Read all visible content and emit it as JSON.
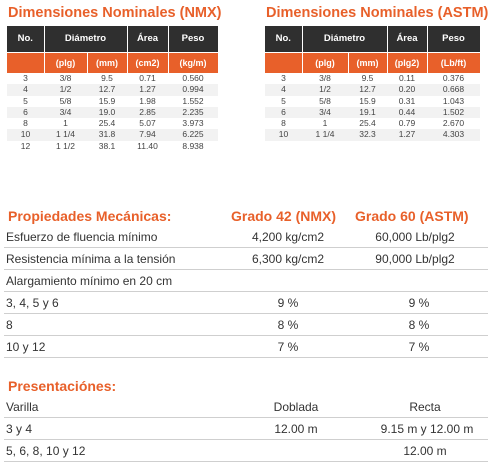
{
  "nmx": {
    "title": "Dimensiones Nominales (NMX)",
    "headers": [
      "No.",
      "Diámetro",
      "Área",
      "Peso"
    ],
    "units": [
      "(plg)",
      "(mm)",
      "(cm2)",
      "(kg/m)"
    ],
    "rows": [
      [
        "3",
        "3/8",
        "9.5",
        "0.71",
        "0.560"
      ],
      [
        "4",
        "1/2",
        "12.7",
        "1.27",
        "0.994"
      ],
      [
        "5",
        "5/8",
        "15.9",
        "1.98",
        "1.552"
      ],
      [
        "6",
        "3/4",
        "19.0",
        "2.85",
        "2.235"
      ],
      [
        "8",
        "1",
        "25.4",
        "5.07",
        "3.973"
      ],
      [
        "10",
        "1 1/4",
        "31.8",
        "7.94",
        "6.225"
      ],
      [
        "12",
        "1 1/2",
        "38.1",
        "11.40",
        "8.938"
      ]
    ]
  },
  "astm": {
    "title": "Dimensiones Nominales (ASTM)",
    "headers": [
      "No.",
      "Diámetro",
      "Área",
      "Peso"
    ],
    "units": [
      "(plg)",
      "(mm)",
      "(plg2)",
      "(Lb/ft)"
    ],
    "rows": [
      [
        "3",
        "3/8",
        "9.5",
        "0.11",
        "0.376"
      ],
      [
        "4",
        "1/2",
        "12.7",
        "0.20",
        "0.668"
      ],
      [
        "5",
        "5/8",
        "15.9",
        "0.31",
        "1.043"
      ],
      [
        "6",
        "3/4",
        "19.1",
        "0.44",
        "1.502"
      ],
      [
        "8",
        "1",
        "25.4",
        "0.79",
        "2.670"
      ],
      [
        "10",
        "1 1/4",
        "32.3",
        "1.27",
        "4.303"
      ]
    ]
  },
  "mechanical": {
    "title": "Propiedades Mecánicas:",
    "grade42": "Grado 42 (NMX)",
    "grade60": "Grado 60 (ASTM)",
    "yield": {
      "label": "Esfuerzo de fluencia mínimo",
      "g42": "4,200 kg/cm2",
      "g60": "60,000 Lb/plg2"
    },
    "tensile": {
      "label": "Resistencia mínima a la tensión",
      "g42": "6,300 kg/cm2",
      "g60": "90,000 Lb/plg2"
    },
    "elongation_label": "Alargamiento mínimo en 20 cm",
    "elongation": [
      {
        "label": "3, 4, 5 y 6",
        "g42": "9 %",
        "g60": "9 %"
      },
      {
        "label": "8",
        "g42": "8 %",
        "g60": "8 %"
      },
      {
        "label": "10 y 12",
        "g42": "7 %",
        "g60": "7 %"
      }
    ]
  },
  "presentations": {
    "title": "Presentaciónes:",
    "header": {
      "label": "Varilla",
      "bent": "Doblada",
      "straight": "Recta"
    },
    "row1": {
      "label": "3 y 4",
      "bent": "12.00 m",
      "straight": "9.15 m y 12.00 m"
    },
    "row2": {
      "label": "5, 6, 8, 10 y 12",
      "straight": "12.00 m"
    }
  }
}
